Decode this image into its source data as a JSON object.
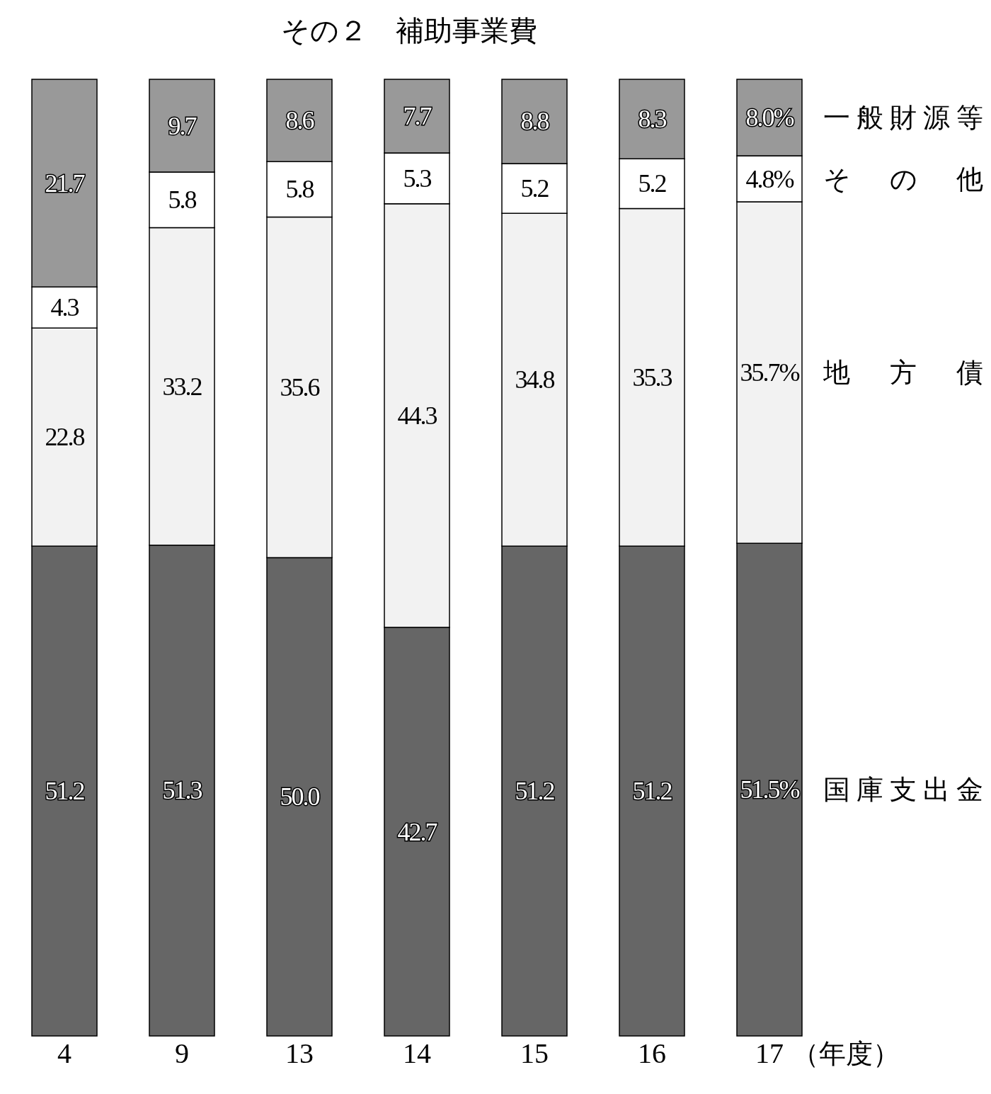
{
  "chart_data": {
    "type": "bar",
    "title": "その２　補助事業費",
    "xlabel": "（年度）",
    "categories": [
      "4",
      "9",
      "13",
      "14",
      "15",
      "16",
      "17"
    ],
    "stacked": true,
    "data_labels": true,
    "legend": "right",
    "series": [
      {
        "name": "国庫支出金",
        "color": "#666666",
        "values": [
          51.2,
          51.3,
          50.0,
          42.7,
          51.2,
          51.2,
          51.5
        ],
        "value_labels": [
          "51.2",
          "51.3",
          "50.0",
          "42.7",
          "51.2",
          "51.2",
          "51.5%"
        ]
      },
      {
        "name": "地方債",
        "color": "#f2f2f2",
        "values": [
          22.8,
          33.2,
          35.6,
          44.3,
          34.8,
          35.3,
          35.7
        ],
        "value_labels": [
          "22.8",
          "33.2",
          "35.6",
          "44.3",
          "34.8",
          "35.3",
          "35.7%"
        ]
      },
      {
        "name": "その他",
        "color": "#ffffff",
        "values": [
          4.3,
          5.8,
          5.8,
          5.3,
          5.2,
          5.2,
          4.8
        ],
        "value_labels": [
          "4.3",
          "5.8",
          "5.8",
          "5.3",
          "5.2",
          "5.2",
          "4.8%"
        ]
      },
      {
        "name": "一般財源等",
        "color": "#999999",
        "values": [
          21.7,
          9.7,
          8.6,
          7.7,
          8.8,
          8.3,
          8.0
        ],
        "value_labels": [
          "21.7",
          "9.7",
          "8.6",
          "7.7",
          "8.8",
          "8.3",
          "8.0%"
        ]
      }
    ]
  }
}
